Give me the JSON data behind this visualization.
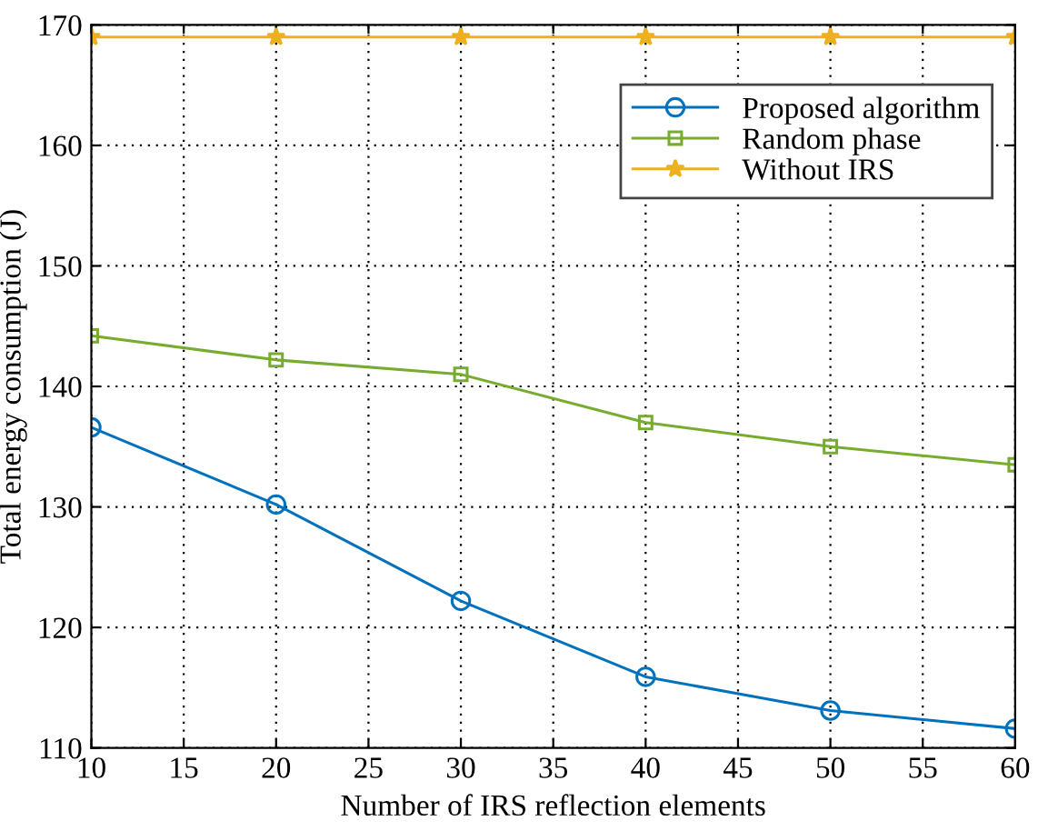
{
  "chart_data": {
    "type": "line",
    "xlabel": "Number of IRS reflection elements",
    "ylabel": "Total energy consumption (J)",
    "x": [
      10,
      20,
      30,
      40,
      50,
      60
    ],
    "series": [
      {
        "name": "Proposed algorithm",
        "color": "#0072bd",
        "marker": "circle",
        "values": [
          136.6,
          130.2,
          122.2,
          115.9,
          113.1,
          111.6
        ]
      },
      {
        "name": "Random phase",
        "color": "#77ac30",
        "marker": "square",
        "values": [
          144.2,
          142.2,
          141.0,
          137.0,
          135.0,
          133.5
        ]
      },
      {
        "name": "Without IRS",
        "color": "#edb120",
        "marker": "star",
        "values": [
          169.0,
          169.0,
          169.0,
          169.0,
          169.0,
          169.0
        ]
      }
    ],
    "xlim": [
      10,
      60
    ],
    "xticks": [
      10,
      15,
      20,
      25,
      30,
      35,
      40,
      45,
      50,
      55,
      60
    ],
    "ylim": [
      110,
      170
    ],
    "yticks": [
      110,
      120,
      130,
      140,
      150,
      160,
      170
    ],
    "grid": true,
    "legend": "top right",
    "line_style": "solid"
  }
}
